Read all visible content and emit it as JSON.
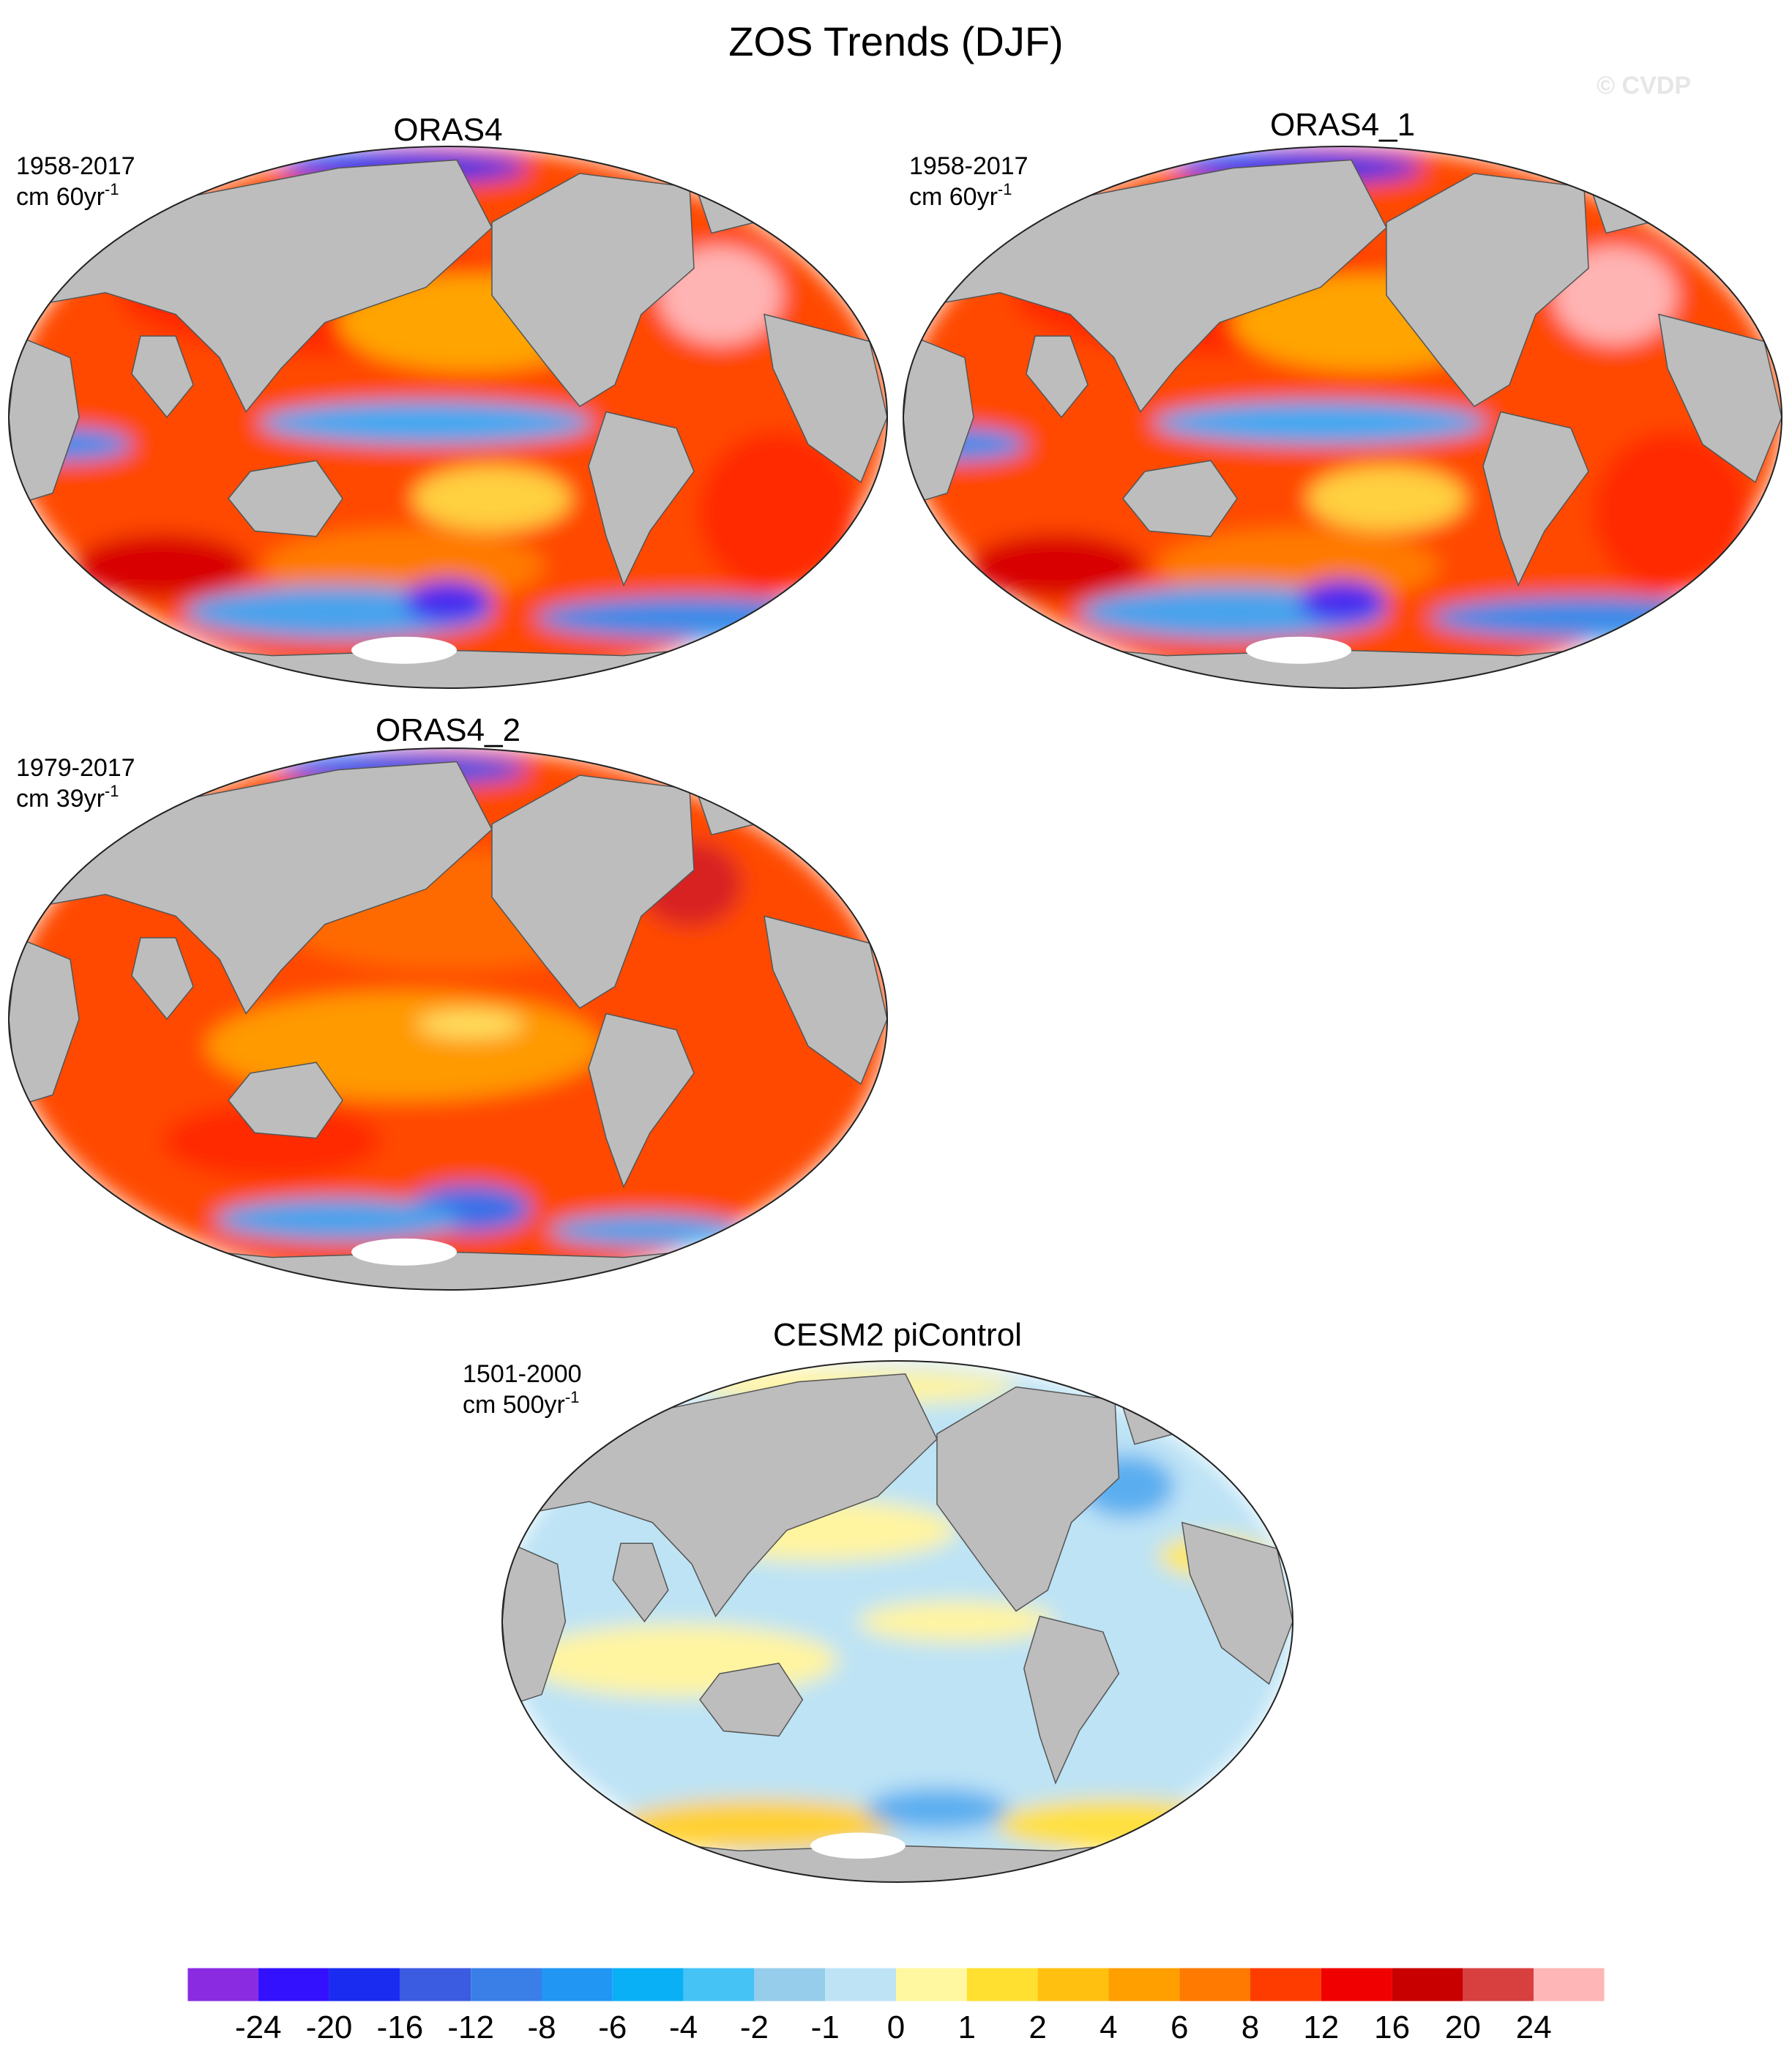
{
  "page": {
    "title": "ZOS Trends (DJF)",
    "watermark": "© CVDP"
  },
  "chart_data": [
    {
      "type": "heatmap",
      "title": "ORAS4",
      "period": "1958-2017",
      "units_base": "cm 60yr",
      "units_sup": "-1",
      "projection": "Winkel tripel (world)",
      "dominant_pattern": "positive (red) nearly everywhere; negative (blue) equatorial Pacific, Arctic and Southern Ocean"
    },
    {
      "type": "heatmap",
      "title": "ORAS4_1",
      "period": "1958-2017",
      "units_base": "cm 60yr",
      "units_sup": "-1",
      "projection": "Winkel tripel (world)",
      "dominant_pattern": "positive (red) nearly everywhere; negative (blue) equatorial Pacific, Arctic and Southern Ocean"
    },
    {
      "type": "heatmap",
      "title": "ORAS4_2",
      "period": "1979-2017",
      "units_base": "cm 39yr",
      "units_sup": "-1",
      "projection": "Winkel tripel (world)",
      "dominant_pattern": "positive (red/orange) nearly everywhere; weak negative Arctic and Southern Ocean"
    },
    {
      "type": "heatmap",
      "title": "CESM2 piControl",
      "period": "1501-2000",
      "units_base": "cm 500yr",
      "units_sup": "-1",
      "projection": "Winkel tripel (world)",
      "dominant_pattern": "near zero everywhere (light yellow / light blue), weak positive Southern Ocean"
    }
  ],
  "colorbar": {
    "labels": [
      "-24",
      "-20",
      "-16",
      "-12",
      "-8",
      "-6",
      "-4",
      "-2",
      "-1",
      "0",
      "1",
      "2",
      "4",
      "6",
      "8",
      "12",
      "16",
      "20",
      "24"
    ],
    "colors": [
      "#8a2be2",
      "#3311ff",
      "#1a2cf0",
      "#3b5be0",
      "#3a7ee8",
      "#2196f3",
      "#0ab0f5",
      "#46c3f5",
      "#95cdeb",
      "#bde3f5",
      "#fff8a0",
      "#ffe030",
      "#ffc010",
      "#ffa000",
      "#ff7a00",
      "#ff3c00",
      "#f00000",
      "#c80000",
      "#d84040",
      "#ffb6b6"
    ]
  },
  "colors": {
    "land": "#bdbdbd",
    "ice": "#ffffff",
    "outline": "#555555"
  }
}
